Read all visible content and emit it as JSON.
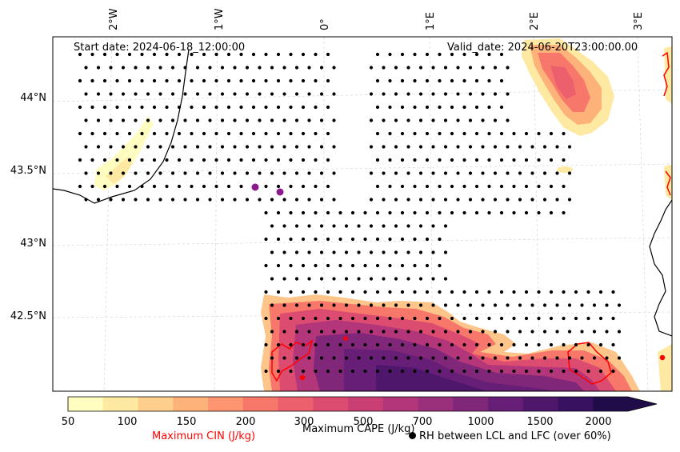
{
  "header": {
    "start_date": "Start date: 2024-06-18_12:00:00",
    "valid_date": "Valid_date: 2024-06-20T23:00:00.00"
  },
  "axes": {
    "longitude_labels": [
      "2°W",
      "1°W",
      "0°",
      "1°E",
      "2°E",
      "3°E"
    ],
    "latitude_labels": [
      "44°N",
      "43.5°N",
      "43°N",
      "42.5°N"
    ]
  },
  "colorbar": {
    "ticks": [
      "50",
      "100",
      "150",
      "200",
      "300",
      "500",
      "700",
      "1000",
      "1500",
      "2000"
    ],
    "colors": [
      "#fffdc0",
      "#fee9a3",
      "#fecf8c",
      "#fdb27a",
      "#fc9570",
      "#f7776b",
      "#ec5f6c",
      "#dc4b70",
      "#c93f74",
      "#b23679",
      "#9a2f7b",
      "#812779",
      "#671e76",
      "#4f176b",
      "#381160",
      "#1f0c48"
    ],
    "label": "Maximum CAPE (J/kg)",
    "extend": "max"
  },
  "legend": {
    "cin_label": "Maximum CIN (J/kg)",
    "cin_color": "#ff0000",
    "rh_label": "RH between LCL and LFC (over 60%)"
  }
}
